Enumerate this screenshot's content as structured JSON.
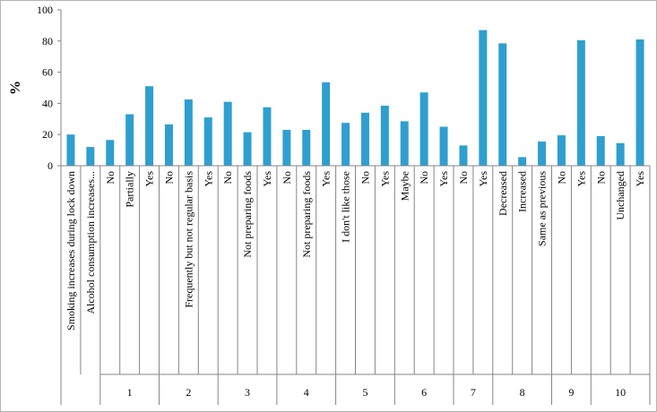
{
  "chart_data": {
    "type": "bar",
    "ylabel": "%",
    "ylim": [
      0,
      100
    ],
    "yticks": [
      0,
      20,
      40,
      60,
      80,
      100
    ],
    "grid": false,
    "legend": "none",
    "bar_color": "#2E9FD0",
    "categories": [
      "Smoking increases during lock down",
      "Alcohol consumption increases...",
      "No",
      "Partially",
      "Yes",
      "No",
      "Frequently but not regular basis",
      "Yes",
      "No",
      "Not preparing foods",
      "Yes",
      "No",
      "Not preparing foods",
      "Yes",
      "I don't like those",
      "No",
      "Yes",
      "Maybe",
      "No",
      "Yes",
      "No",
      "Yes",
      "Decreased",
      "Increased",
      "Same as previous",
      "No",
      "Yes",
      "No",
      "Unchanged",
      "Yes"
    ],
    "values": [
      20,
      12,
      16.5,
      33,
      51,
      26.5,
      42.5,
      31,
      41,
      21.5,
      37.5,
      23,
      23,
      53.5,
      27.5,
      34,
      38.5,
      28.5,
      47,
      25,
      13,
      87,
      78.5,
      5.5,
      15.5,
      19.5,
      80.5,
      19,
      14.5,
      81
    ],
    "groups": [
      {
        "label": "",
        "start": 0,
        "end": 1
      },
      {
        "label": "1",
        "start": 2,
        "end": 4
      },
      {
        "label": "2",
        "start": 5,
        "end": 7
      },
      {
        "label": "3",
        "start": 8,
        "end": 10
      },
      {
        "label": "4",
        "start": 11,
        "end": 13
      },
      {
        "label": "5",
        "start": 14,
        "end": 16
      },
      {
        "label": "6",
        "start": 17,
        "end": 19
      },
      {
        "label": "7",
        "start": 20,
        "end": 21
      },
      {
        "label": "8",
        "start": 22,
        "end": 24
      },
      {
        "label": "9",
        "start": 25,
        "end": 26
      },
      {
        "label": "10",
        "start": 27,
        "end": 29
      }
    ]
  }
}
